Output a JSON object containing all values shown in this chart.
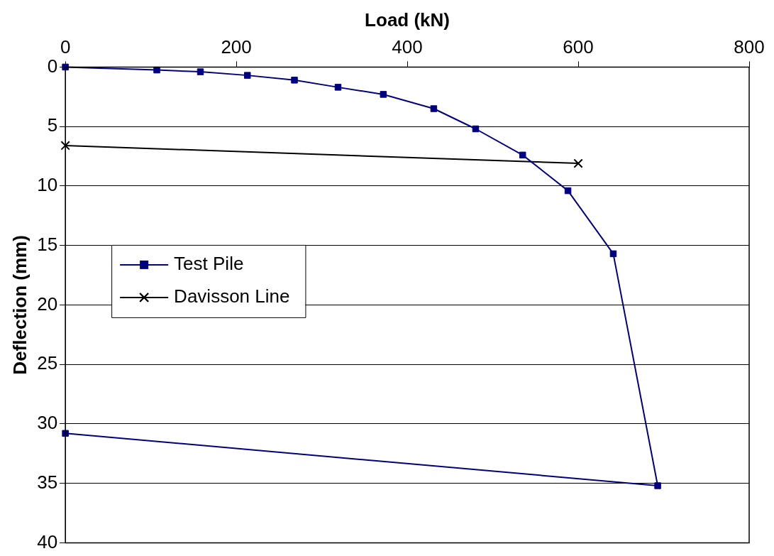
{
  "chart_data": {
    "type": "line",
    "xlabel": "Load (kN)",
    "ylabel": "Deflection (mm)",
    "xlim": [
      0,
      800
    ],
    "xticks": [
      0,
      200,
      400,
      600,
      800
    ],
    "ylim": [
      40,
      0
    ],
    "yticks": [
      0,
      5,
      10,
      15,
      20,
      25,
      30,
      35,
      40
    ],
    "grid": "y",
    "legend": "left",
    "line_style": "solid",
    "series": [
      {
        "name": "Test Pile",
        "color": "#000080",
        "marker": "square",
        "x": [
          0,
          107,
          158,
          213,
          268,
          319,
          372,
          431,
          480,
          535,
          588,
          641,
          693,
          0
        ],
        "values": [
          0,
          0.25,
          0.4,
          0.7,
          1.1,
          1.7,
          2.3,
          3.5,
          5.2,
          7.4,
          10.4,
          15.7,
          35.2,
          30.8
        ]
      },
      {
        "name": "Davisson Line",
        "color": "#000000",
        "marker": "cross",
        "x": [
          0,
          600
        ],
        "values": [
          6.6,
          8.1
        ]
      }
    ]
  }
}
